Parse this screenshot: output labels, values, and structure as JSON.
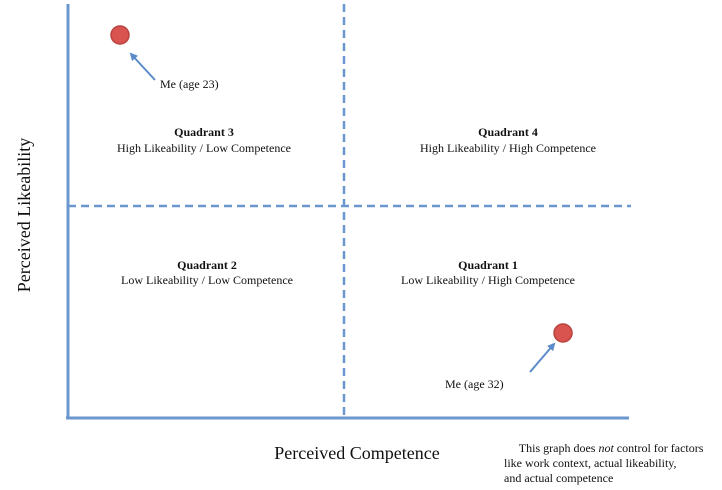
{
  "axes": {
    "x_label": "Perceived Competence",
    "y_label": "Perceived Likeability"
  },
  "quadrants": [
    {
      "title": "Quadrant 3",
      "subtitle": "High Likeability / Low Competence"
    },
    {
      "title": "Quadrant 4",
      "subtitle": "High Likeability / High Competence"
    },
    {
      "title": "Quadrant 2",
      "subtitle": "Low Likeability / Low Competence"
    },
    {
      "title": "Quadrant 1",
      "subtitle": "Low Likeability / High Competence"
    }
  ],
  "points": [
    {
      "label": "Me (age 23)"
    },
    {
      "label": "Me (age 32)"
    }
  ],
  "note": {
    "line1": [
      "This graph does ",
      "not",
      " control for factors"
    ],
    "line2": "like work context, actual likeability,",
    "line3": "and actual competence"
  }
}
